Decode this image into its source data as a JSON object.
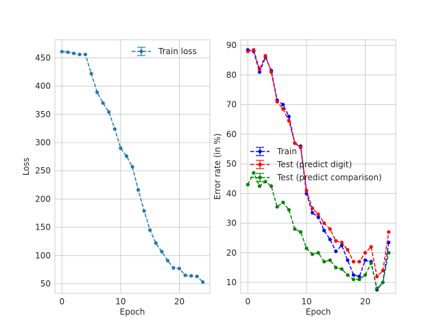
{
  "chart_data": [
    {
      "type": "line",
      "xlabel": "Epoch",
      "ylabel": "Loss",
      "xlim": [
        -1.2,
        25.2
      ],
      "ylim": [
        33,
        482
      ],
      "xticks": [
        0,
        10,
        20
      ],
      "yticks": [
        50,
        100,
        150,
        200,
        250,
        300,
        350,
        400,
        450
      ],
      "grid": true,
      "legend_position": "top-right",
      "series": [
        {
          "name": "Train loss",
          "color": "#1f77b4",
          "x": [
            0,
            1,
            2,
            3,
            4,
            5,
            6,
            7,
            8,
            9,
            10,
            11,
            12,
            13,
            14,
            15,
            16,
            17,
            18,
            19,
            20,
            21,
            22,
            23,
            24
          ],
          "y": [
            461,
            460,
            458,
            456,
            456,
            422,
            389,
            370,
            354,
            324,
            290,
            276,
            257,
            216,
            179,
            145,
            122,
            107,
            91,
            78,
            77,
            65,
            64,
            63,
            53
          ]
        }
      ]
    },
    {
      "type": "line",
      "xlabel": "Epoch",
      "ylabel": "Error rate (in %)",
      "xlim": [
        -1.2,
        25.2
      ],
      "ylim": [
        6.3,
        91.9
      ],
      "xticks": [
        0,
        10,
        20
      ],
      "yticks": [
        10,
        20,
        30,
        40,
        50,
        60,
        70,
        80,
        90
      ],
      "grid": true,
      "legend_position": "center-left",
      "series": [
        {
          "name": "Train",
          "color": "#0000ff",
          "x": [
            0,
            1,
            2,
            3,
            4,
            5,
            6,
            7,
            8,
            9,
            10,
            11,
            12,
            13,
            14,
            15,
            16,
            17,
            18,
            19,
            20,
            21,
            22,
            23,
            24
          ],
          "y": [
            88.5,
            88,
            81,
            86,
            81.5,
            71.5,
            70,
            66,
            57,
            56,
            40,
            33.5,
            32,
            27.5,
            24.5,
            20.5,
            22.5,
            17.5,
            12.5,
            12,
            17.5,
            17,
            7.5,
            10,
            23.5
          ]
        },
        {
          "name": "Test (predict digit)",
          "color": "#ff0000",
          "x": [
            0,
            1,
            2,
            3,
            4,
            5,
            6,
            7,
            8,
            9,
            10,
            11,
            12,
            13,
            14,
            15,
            16,
            17,
            18,
            19,
            20,
            21,
            22,
            23,
            24
          ],
          "y": [
            88,
            88.5,
            82,
            86.5,
            81,
            71,
            68.5,
            64.5,
            57,
            55.5,
            41,
            35,
            33,
            30,
            28,
            24,
            23.5,
            21,
            17,
            17,
            20,
            22,
            12,
            14,
            27
          ]
        },
        {
          "name": "Test (predict comparison)",
          "color": "#008000",
          "x": [
            0,
            1,
            2,
            3,
            4,
            5,
            6,
            7,
            8,
            9,
            10,
            11,
            12,
            13,
            14,
            15,
            16,
            17,
            18,
            19,
            20,
            21,
            22,
            23,
            24
          ],
          "y": [
            43,
            47,
            42.5,
            44,
            42.5,
            35.5,
            37,
            34.5,
            28,
            27,
            21.5,
            19.5,
            20,
            17,
            17.5,
            15,
            14.5,
            12.5,
            11,
            11,
            12.5,
            16.5,
            8,
            10,
            20
          ]
        }
      ]
    }
  ]
}
